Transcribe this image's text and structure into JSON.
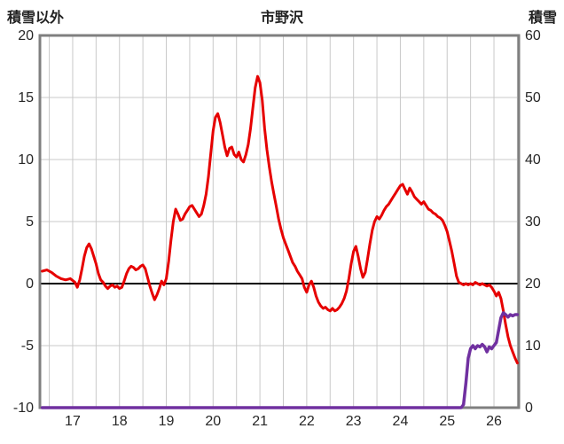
{
  "chart_data": {
    "type": "line",
    "title": "市野沢",
    "left_axis_label": "積雪以外",
    "right_axis_label": "積雪",
    "x_ticks": [
      17,
      18,
      19,
      20,
      21,
      22,
      23,
      24,
      25,
      26
    ],
    "left_ticks": [
      20,
      15,
      10,
      5,
      0,
      -5,
      -10
    ],
    "right_ticks": [
      60,
      50,
      40,
      30,
      20,
      10,
      0
    ],
    "x_range": [
      16.3,
      26.53
    ],
    "left_range": [
      -10,
      20
    ],
    "right_range": [
      0,
      60
    ],
    "grid": {
      "x_step": 0.5,
      "left_step": 5,
      "grid_color": "#c9c9c9",
      "zero_line_color": "#000000",
      "border_color": "#7f7f7f"
    },
    "legend": "none",
    "series": [
      {
        "name": "積雪以外",
        "axis": "left",
        "color": "#e60000",
        "width": 3,
        "points": [
          [
            16.35,
            1.0
          ],
          [
            16.45,
            1.1
          ],
          [
            16.55,
            0.9
          ],
          [
            16.65,
            0.6
          ],
          [
            16.75,
            0.4
          ],
          [
            16.85,
            0.3
          ],
          [
            16.95,
            0.4
          ],
          [
            17.05,
            0.1
          ],
          [
            17.1,
            -0.3
          ],
          [
            17.15,
            0.3
          ],
          [
            17.2,
            1.2
          ],
          [
            17.25,
            2.2
          ],
          [
            17.3,
            2.9
          ],
          [
            17.35,
            3.2
          ],
          [
            17.4,
            2.8
          ],
          [
            17.45,
            2.2
          ],
          [
            17.5,
            1.6
          ],
          [
            17.55,
            0.8
          ],
          [
            17.6,
            0.3
          ],
          [
            17.65,
            0.1
          ],
          [
            17.7,
            -0.2
          ],
          [
            17.75,
            -0.4
          ],
          [
            17.8,
            -0.2
          ],
          [
            17.85,
            -0.1
          ],
          [
            17.9,
            -0.3
          ],
          [
            17.95,
            -0.2
          ],
          [
            18.0,
            -0.4
          ],
          [
            18.05,
            -0.3
          ],
          [
            18.1,
            0.2
          ],
          [
            18.15,
            0.8
          ],
          [
            18.2,
            1.2
          ],
          [
            18.25,
            1.4
          ],
          [
            18.3,
            1.3
          ],
          [
            18.35,
            1.1
          ],
          [
            18.4,
            1.2
          ],
          [
            18.45,
            1.4
          ],
          [
            18.5,
            1.5
          ],
          [
            18.55,
            1.2
          ],
          [
            18.6,
            0.5
          ],
          [
            18.65,
            -0.2
          ],
          [
            18.7,
            -0.8
          ],
          [
            18.75,
            -1.3
          ],
          [
            18.8,
            -0.9
          ],
          [
            18.85,
            -0.4
          ],
          [
            18.9,
            0.2
          ],
          [
            18.95,
            -0.1
          ],
          [
            19.0,
            0.4
          ],
          [
            19.05,
            1.8
          ],
          [
            19.1,
            3.5
          ],
          [
            19.15,
            5.0
          ],
          [
            19.2,
            6.0
          ],
          [
            19.25,
            5.6
          ],
          [
            19.3,
            5.1
          ],
          [
            19.35,
            5.2
          ],
          [
            19.4,
            5.6
          ],
          [
            19.45,
            5.9
          ],
          [
            19.5,
            6.2
          ],
          [
            19.55,
            6.3
          ],
          [
            19.6,
            6.0
          ],
          [
            19.65,
            5.7
          ],
          [
            19.7,
            5.4
          ],
          [
            19.75,
            5.6
          ],
          [
            19.8,
            6.3
          ],
          [
            19.85,
            7.2
          ],
          [
            19.9,
            8.6
          ],
          [
            19.95,
            10.5
          ],
          [
            20.0,
            12.3
          ],
          [
            20.05,
            13.4
          ],
          [
            20.1,
            13.7
          ],
          [
            20.15,
            13.0
          ],
          [
            20.2,
            12.0
          ],
          [
            20.25,
            11.0
          ],
          [
            20.3,
            10.3
          ],
          [
            20.35,
            10.9
          ],
          [
            20.4,
            11.0
          ],
          [
            20.45,
            10.4
          ],
          [
            20.5,
            10.2
          ],
          [
            20.55,
            10.6
          ],
          [
            20.6,
            10.0
          ],
          [
            20.65,
            9.8
          ],
          [
            20.7,
            10.4
          ],
          [
            20.75,
            11.2
          ],
          [
            20.8,
            12.5
          ],
          [
            20.85,
            14.2
          ],
          [
            20.9,
            15.8
          ],
          [
            20.95,
            16.7
          ],
          [
            21.0,
            16.2
          ],
          [
            21.05,
            14.8
          ],
          [
            21.1,
            12.5
          ],
          [
            21.15,
            10.8
          ],
          [
            21.2,
            9.4
          ],
          [
            21.25,
            8.2
          ],
          [
            21.3,
            7.2
          ],
          [
            21.35,
            6.2
          ],
          [
            21.4,
            5.2
          ],
          [
            21.45,
            4.4
          ],
          [
            21.5,
            3.7
          ],
          [
            21.55,
            3.2
          ],
          [
            21.6,
            2.7
          ],
          [
            21.65,
            2.2
          ],
          [
            21.7,
            1.7
          ],
          [
            21.75,
            1.4
          ],
          [
            21.8,
            1.0
          ],
          [
            21.85,
            0.7
          ],
          [
            21.9,
            0.4
          ],
          [
            21.95,
            -0.3
          ],
          [
            22.0,
            -0.7
          ],
          [
            22.05,
            -0.1
          ],
          [
            22.1,
            0.2
          ],
          [
            22.15,
            -0.3
          ],
          [
            22.2,
            -1.0
          ],
          [
            22.25,
            -1.5
          ],
          [
            22.3,
            -1.8
          ],
          [
            22.35,
            -2.0
          ],
          [
            22.4,
            -1.9
          ],
          [
            22.45,
            -2.1
          ],
          [
            22.5,
            -2.2
          ],
          [
            22.55,
            -2.0
          ],
          [
            22.6,
            -2.2
          ],
          [
            22.65,
            -2.1
          ],
          [
            22.7,
            -1.9
          ],
          [
            22.75,
            -1.6
          ],
          [
            22.8,
            -1.2
          ],
          [
            22.85,
            -0.6
          ],
          [
            22.9,
            0.4
          ],
          [
            22.95,
            1.6
          ],
          [
            23.0,
            2.6
          ],
          [
            23.05,
            3.0
          ],
          [
            23.1,
            2.2
          ],
          [
            23.15,
            1.2
          ],
          [
            23.2,
            0.5
          ],
          [
            23.25,
            0.9
          ],
          [
            23.3,
            2.0
          ],
          [
            23.35,
            3.2
          ],
          [
            23.4,
            4.3
          ],
          [
            23.45,
            5.0
          ],
          [
            23.5,
            5.4
          ],
          [
            23.55,
            5.2
          ],
          [
            23.6,
            5.5
          ],
          [
            23.65,
            5.9
          ],
          [
            23.7,
            6.2
          ],
          [
            23.75,
            6.4
          ],
          [
            23.8,
            6.7
          ],
          [
            23.85,
            7.0
          ],
          [
            23.9,
            7.3
          ],
          [
            23.95,
            7.6
          ],
          [
            24.0,
            7.9
          ],
          [
            24.05,
            8.0
          ],
          [
            24.1,
            7.6
          ],
          [
            24.15,
            7.2
          ],
          [
            24.2,
            7.7
          ],
          [
            24.25,
            7.4
          ],
          [
            24.3,
            7.0
          ],
          [
            24.35,
            6.8
          ],
          [
            24.4,
            6.6
          ],
          [
            24.45,
            6.4
          ],
          [
            24.5,
            6.6
          ],
          [
            24.55,
            6.3
          ],
          [
            24.6,
            6.0
          ],
          [
            24.65,
            5.9
          ],
          [
            24.7,
            5.7
          ],
          [
            24.75,
            5.6
          ],
          [
            24.8,
            5.4
          ],
          [
            24.85,
            5.3
          ],
          [
            24.9,
            5.1
          ],
          [
            24.95,
            4.7
          ],
          [
            25.0,
            4.2
          ],
          [
            25.05,
            3.4
          ],
          [
            25.1,
            2.6
          ],
          [
            25.15,
            1.6
          ],
          [
            25.2,
            0.6
          ],
          [
            25.25,
            0.1
          ],
          [
            25.3,
            0.0
          ],
          [
            25.35,
            -0.1
          ],
          [
            25.4,
            0.0
          ],
          [
            25.45,
            -0.1
          ],
          [
            25.5,
            0.0
          ],
          [
            25.55,
            -0.1
          ],
          [
            25.6,
            0.1
          ],
          [
            25.65,
            0.0
          ],
          [
            25.7,
            -0.1
          ],
          [
            25.75,
            0.0
          ],
          [
            25.8,
            -0.1
          ],
          [
            25.85,
            -0.2
          ],
          [
            25.9,
            -0.1
          ],
          [
            25.95,
            -0.3
          ],
          [
            26.0,
            -0.6
          ],
          [
            26.05,
            -1.0
          ],
          [
            26.1,
            -0.7
          ],
          [
            26.15,
            -1.2
          ],
          [
            26.2,
            -2.2
          ],
          [
            26.25,
            -3.3
          ],
          [
            26.3,
            -4.3
          ],
          [
            26.35,
            -5.0
          ],
          [
            26.4,
            -5.5
          ],
          [
            26.45,
            -6.0
          ],
          [
            26.5,
            -6.4
          ]
        ]
      },
      {
        "name": "積雪",
        "axis": "right",
        "color": "#7030a0",
        "width": 3.5,
        "points": [
          [
            16.35,
            0
          ],
          [
            25.3,
            0
          ],
          [
            25.35,
            0.5
          ],
          [
            25.4,
            4
          ],
          [
            25.45,
            8
          ],
          [
            25.5,
            9.5
          ],
          [
            25.55,
            10
          ],
          [
            25.6,
            9.5
          ],
          [
            25.65,
            10
          ],
          [
            25.7,
            9.8
          ],
          [
            25.75,
            10.2
          ],
          [
            25.8,
            9.8
          ],
          [
            25.85,
            9.0
          ],
          [
            25.9,
            9.8
          ],
          [
            25.95,
            9.5
          ],
          [
            26.0,
            10
          ],
          [
            26.05,
            10.5
          ],
          [
            26.1,
            12.5
          ],
          [
            26.15,
            14.5
          ],
          [
            26.2,
            15.3
          ],
          [
            26.25,
            15
          ],
          [
            26.3,
            14.6
          ],
          [
            26.35,
            15
          ],
          [
            26.4,
            14.8
          ],
          [
            26.45,
            15
          ],
          [
            26.5,
            15
          ]
        ]
      }
    ]
  }
}
